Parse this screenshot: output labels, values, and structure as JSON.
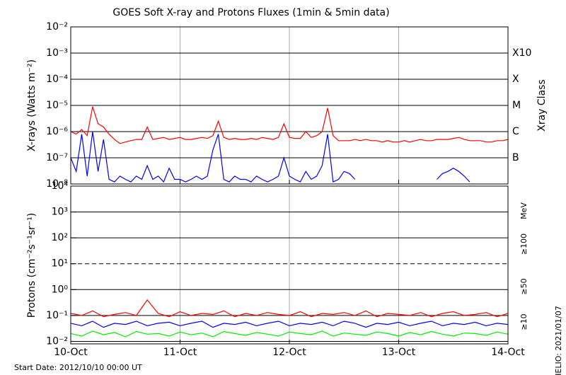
{
  "chart_data": [
    {
      "type": "line",
      "title": "GOES Soft X-ray and Protons Fluxes   (1min & 5min data)",
      "y_label": "X-rays (Watts m⁻²)",
      "y2_label": "Xray Class",
      "log_y": true,
      "grid": true,
      "xlim": [
        0,
        4
      ],
      "xticks": [
        0,
        1,
        2,
        3,
        4
      ],
      "ylim": [
        1e-08,
        0.01
      ],
      "yticks": [
        {
          "value": 1e-08,
          "label": "10⁻⁸"
        },
        {
          "value": 1e-07,
          "label": "10⁻⁷"
        },
        {
          "value": 1e-06,
          "label": "10⁻⁶"
        },
        {
          "value": 1e-05,
          "label": "10⁻⁵"
        },
        {
          "value": 0.0001,
          "label": "10⁻⁴"
        },
        {
          "value": 0.001,
          "label": "10⁻³"
        },
        {
          "value": 0.01,
          "label": "10⁻²"
        }
      ],
      "y2ticks": [
        {
          "value": 1e-07,
          "label": "B"
        },
        {
          "value": 1e-06,
          "label": "C"
        },
        {
          "value": 1e-05,
          "label": "M"
        },
        {
          "value": 0.0001,
          "label": "X"
        },
        {
          "value": 0.001,
          "label": "X10"
        }
      ],
      "x": [
        0,
        0.05,
        0.1,
        0.15,
        0.2,
        0.25,
        0.3,
        0.35,
        0.4,
        0.45,
        0.5,
        0.55,
        0.6,
        0.65,
        0.7,
        0.75,
        0.8,
        0.85,
        0.9,
        0.95,
        1,
        1.05,
        1.1,
        1.15,
        1.2,
        1.25,
        1.3,
        1.35,
        1.4,
        1.45,
        1.5,
        1.55,
        1.6,
        1.65,
        1.7,
        1.75,
        1.8,
        1.85,
        1.9,
        1.95,
        2,
        2.05,
        2.1,
        2.15,
        2.2,
        2.25,
        2.3,
        2.35,
        2.4,
        2.45,
        2.5,
        2.55,
        2.6,
        2.65,
        2.7,
        2.75,
        2.8,
        2.85,
        2.9,
        2.95,
        3,
        3.05,
        3.1,
        3.15,
        3.2,
        3.25,
        3.3,
        3.35,
        3.4,
        3.45,
        3.5,
        3.55,
        3.6,
        3.65,
        3.7,
        3.75,
        3.8,
        3.85,
        3.9,
        3.95,
        4
      ],
      "series": [
        {
          "color": "#ff0000",
          "values": [
            1e-06,
            8e-07,
            1.2e-06,
            7e-07,
            9e-06,
            2e-06,
            1.5e-06,
            8e-07,
            5e-07,
            3.5e-07,
            4e-07,
            4.5e-07,
            5e-07,
            5e-07,
            1.5e-06,
            5e-07,
            5.5e-07,
            6e-07,
            5e-07,
            5.5e-07,
            6e-07,
            5e-07,
            5e-07,
            5.5e-07,
            6e-07,
            5.5e-07,
            7e-07,
            2.5e-06,
            6e-07,
            5e-07,
            5.5e-07,
            5e-07,
            5e-07,
            5.5e-07,
            5e-07,
            6e-07,
            5.5e-07,
            5e-07,
            6e-07,
            2e-06,
            6e-07,
            5.5e-07,
            5.5e-07,
            1e-06,
            6e-07,
            7e-07,
            1e-06,
            8e-06,
            7e-07,
            4.5e-07,
            4.5e-07,
            4.5e-07,
            5e-07,
            4.5e-07,
            5e-07,
            4.5e-07,
            4.5e-07,
            4e-07,
            4.5e-07,
            4e-07,
            4e-07,
            4.5e-07,
            4e-07,
            4.5e-07,
            5e-07,
            4.5e-07,
            4.5e-07,
            5e-07,
            5e-07,
            5e-07,
            5.5e-07,
            6e-07,
            5e-07,
            4.5e-07,
            4.5e-07,
            4.5e-07,
            4e-07,
            4e-07,
            4.5e-07,
            4.5e-07,
            5e-07
          ]
        },
        {
          "color": "#0000ff",
          "values": [
            1e-07,
            3e-08,
            8e-07,
            2e-08,
            1e-06,
            3e-08,
            5e-07,
            1.5e-08,
            1.2e-08,
            2e-08,
            1.5e-08,
            1.2e-08,
            2e-08,
            1.5e-08,
            5e-08,
            1.5e-08,
            2e-08,
            1.2e-08,
            4e-08,
            1.5e-08,
            1.5e-08,
            1.2e-08,
            1.5e-08,
            2e-08,
            1.5e-08,
            2e-08,
            2e-07,
            8e-07,
            1.5e-08,
            1.2e-08,
            2e-08,
            1.5e-08,
            1.5e-08,
            1.2e-08,
            2e-08,
            1.5e-08,
            1.2e-08,
            1.5e-08,
            2e-08,
            1e-07,
            2e-08,
            1.5e-08,
            1.2e-08,
            3e-08,
            1.5e-08,
            2e-08,
            5e-08,
            8e-07,
            1.2e-08,
            1.5e-08,
            3e-08,
            2.5e-08,
            1.5e-08,
            null,
            null,
            1.2e-08,
            null,
            null,
            null,
            null,
            null,
            null,
            null,
            null,
            null,
            null,
            null,
            1.5e-08,
            2.5e-08,
            3e-08,
            4e-08,
            3e-08,
            2e-08,
            1.2e-08,
            null,
            null,
            null,
            null,
            null,
            null,
            null
          ]
        }
      ]
    },
    {
      "type": "line",
      "y_label": "Protons (cm⁻²s⁻¹sr⁻¹)",
      "unit_label": "MeV",
      "log_y": true,
      "grid": true,
      "threshold": 10,
      "xlim": [
        0,
        4
      ],
      "xticks": [
        {
          "value": 0,
          "label": "10-Oct"
        },
        {
          "value": 1,
          "label": "11-Oct"
        },
        {
          "value": 2,
          "label": "12-Oct"
        },
        {
          "value": 3,
          "label": "13-Oct"
        },
        {
          "value": 4,
          "label": "14-Oct"
        }
      ],
      "ylim": [
        0.008,
        10000
      ],
      "yticks": [
        {
          "value": 0.01,
          "label": "10⁻²"
        },
        {
          "value": 0.1,
          "label": "10⁻¹"
        },
        {
          "value": 1,
          "label": "10⁰"
        },
        {
          "value": 10,
          "label": "10¹"
        },
        {
          "value": 100,
          "label": "10²"
        },
        {
          "value": 1000,
          "label": "10³"
        },
        {
          "value": 10000,
          "label": "10⁴"
        }
      ],
      "x": [
        0,
        0.1,
        0.2,
        0.3,
        0.4,
        0.5,
        0.6,
        0.7,
        0.8,
        0.9,
        1,
        1.1,
        1.2,
        1.3,
        1.4,
        1.5,
        1.6,
        1.7,
        1.8,
        1.9,
        2,
        2.1,
        2.2,
        2.3,
        2.4,
        2.5,
        2.6,
        2.7,
        2.8,
        2.9,
        3,
        3.1,
        3.2,
        3.3,
        3.4,
        3.5,
        3.6,
        3.7,
        3.8,
        3.9,
        4
      ],
      "series": [
        {
          "name": "≥10",
          "color": "#ff0000",
          "values": [
            0.12,
            0.1,
            0.15,
            0.09,
            0.11,
            0.13,
            0.1,
            0.4,
            0.12,
            0.09,
            0.14,
            0.1,
            0.12,
            0.11,
            0.15,
            0.09,
            0.12,
            0.1,
            0.13,
            0.11,
            0.1,
            0.14,
            0.09,
            0.12,
            0.11,
            0.13,
            0.1,
            0.15,
            0.09,
            0.12,
            0.11,
            0.1,
            0.13,
            0.09,
            0.12,
            0.14,
            0.1,
            0.11,
            0.13,
            0.09,
            0.12
          ]
        },
        {
          "name": "≥50",
          "color": "#0000ff",
          "values": [
            0.05,
            0.04,
            0.06,
            0.035,
            0.05,
            0.045,
            0.06,
            0.04,
            0.05,
            0.055,
            0.04,
            0.05,
            0.06,
            0.035,
            0.05,
            0.045,
            0.055,
            0.04,
            0.05,
            0.06,
            0.04,
            0.05,
            0.045,
            0.055,
            0.04,
            0.06,
            0.05,
            0.035,
            0.05,
            0.045,
            0.055,
            0.04,
            0.05,
            0.06,
            0.04,
            0.05,
            0.045,
            0.055,
            0.04,
            0.05,
            0.045
          ]
        },
        {
          "name": "≥100",
          "color": "#00ee00",
          "values": [
            0.02,
            0.016,
            0.025,
            0.018,
            0.022,
            0.015,
            0.024,
            0.019,
            0.02,
            0.016,
            0.023,
            0.018,
            0.021,
            0.015,
            0.024,
            0.02,
            0.017,
            0.022,
            0.019,
            0.016,
            0.023,
            0.02,
            0.018,
            0.025,
            0.016,
            0.021,
            0.019,
            0.017,
            0.023,
            0.02,
            0.016,
            0.022,
            0.018,
            0.024,
            0.019,
            0.016,
            0.021,
            0.02,
            0.017,
            0.023,
            0.019
          ]
        }
      ]
    }
  ],
  "footer": "Start Date: 2012/10/10 00:00 UT",
  "credit": "HELIO: 2021/01/07"
}
